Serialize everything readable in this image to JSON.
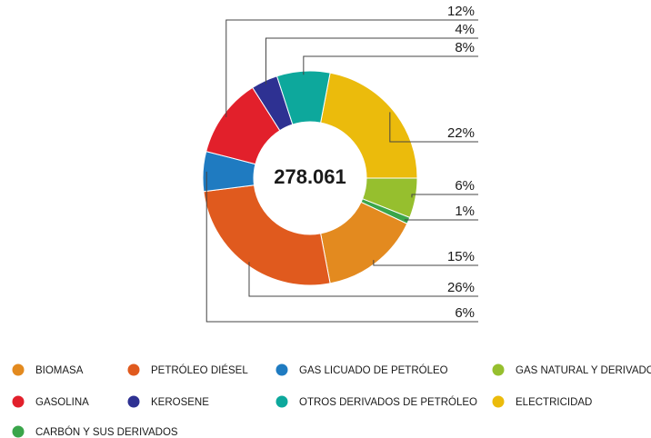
{
  "chart_data": {
    "type": "donut",
    "center_label": "278.061",
    "categories": [
      "BIOMASA",
      "PETRÓLEO DIÉSEL",
      "GAS LICUADO DE PETRÓLEO",
      "GAS NATURAL Y DERIVADOS",
      "GASOLINA",
      "KEROSENE",
      "OTROS DERIVADOS DE PETRÓLEO",
      "ELECTRICIDAD",
      "CARBÓN Y SUS DERIVADOS"
    ],
    "values": [
      15,
      26,
      6,
      6,
      12,
      4,
      8,
      22,
      1
    ],
    "value_labels": [
      "15%",
      "26%",
      "6%",
      "6%",
      "12%",
      "4%",
      "8%",
      "22%",
      "1%"
    ],
    "colors": [
      "#e38a1f",
      "#e05a1e",
      "#1f7bc1",
      "#96bf2e",
      "#e2202b",
      "#2e3192",
      "#0da89c",
      "#ebbb0c",
      "#3aa54a"
    ]
  }
}
